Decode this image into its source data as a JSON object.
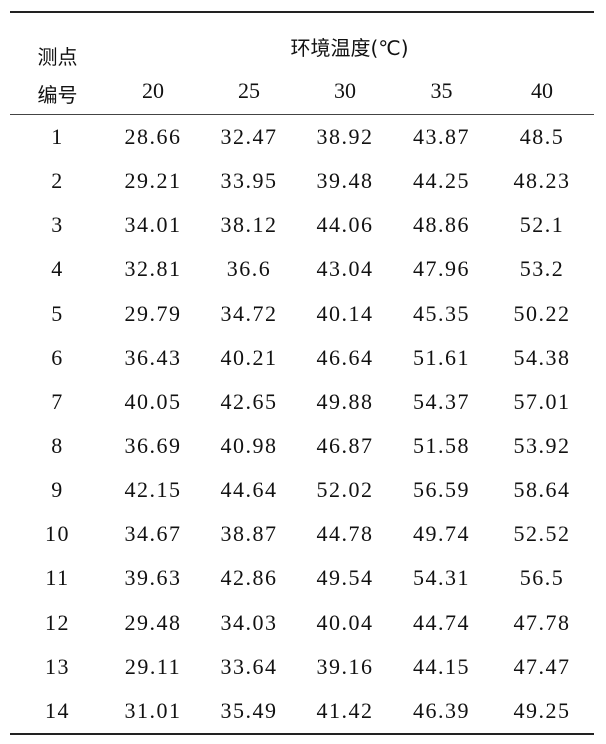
{
  "table": {
    "row_header": [
      "测点",
      "编号"
    ],
    "group_header": "环境温度(℃)",
    "columns": [
      "20",
      "25",
      "30",
      "35",
      "40"
    ],
    "rows": [
      {
        "id": "1",
        "values": [
          "28.66",
          "32.47",
          "38.92",
          "43.87",
          "48.5"
        ]
      },
      {
        "id": "2",
        "values": [
          "29.21",
          "33.95",
          "39.48",
          "44.25",
          "48.23"
        ]
      },
      {
        "id": "3",
        "values": [
          "34.01",
          "38.12",
          "44.06",
          "48.86",
          "52.1"
        ]
      },
      {
        "id": "4",
        "values": [
          "32.81",
          "36.6",
          "43.04",
          "47.96",
          "53.2"
        ]
      },
      {
        "id": "5",
        "values": [
          "29.79",
          "34.72",
          "40.14",
          "45.35",
          "50.22"
        ]
      },
      {
        "id": "6",
        "values": [
          "36.43",
          "40.21",
          "46.64",
          "51.61",
          "54.38"
        ]
      },
      {
        "id": "7",
        "values": [
          "40.05",
          "42.65",
          "49.88",
          "54.37",
          "57.01"
        ]
      },
      {
        "id": "8",
        "values": [
          "36.69",
          "40.98",
          "46.87",
          "51.58",
          "53.92"
        ]
      },
      {
        "id": "9",
        "values": [
          "42.15",
          "44.64",
          "52.02",
          "56.59",
          "58.64"
        ]
      },
      {
        "id": "10",
        "values": [
          "34.67",
          "38.87",
          "44.78",
          "49.74",
          "52.52"
        ]
      },
      {
        "id": "11",
        "values": [
          "39.63",
          "42.86",
          "49.54",
          "54.31",
          "56.5"
        ]
      },
      {
        "id": "12",
        "values": [
          "29.48",
          "34.03",
          "40.04",
          "44.74",
          "47.78"
        ]
      },
      {
        "id": "13",
        "values": [
          "29.11",
          "33.64",
          "39.16",
          "44.15",
          "47.47"
        ]
      },
      {
        "id": "14",
        "values": [
          "31.01",
          "35.49",
          "41.42",
          "46.39",
          "49.25"
        ]
      }
    ]
  }
}
